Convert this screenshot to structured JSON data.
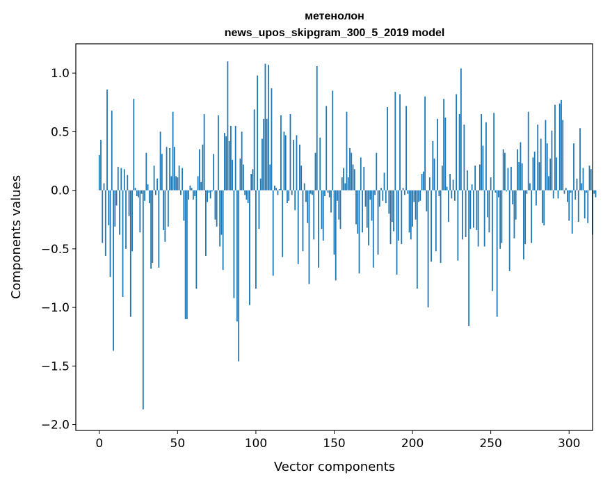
{
  "chart_data": {
    "type": "bar",
    "title_line1": "метенолон",
    "title_line2": "news_upos_skipgram_300_5_2019 model",
    "xlabel": "Vector components",
    "ylabel": "Components values",
    "xlim": [
      -15,
      315
    ],
    "ylim": [
      -2.05,
      1.25
    ],
    "x_ticks": [
      0,
      50,
      100,
      150,
      200,
      250,
      300
    ],
    "x_tick_labels": [
      "0",
      "50",
      "100",
      "150",
      "200",
      "250",
      "300"
    ],
    "y_ticks": [
      1.0,
      0.5,
      0.0,
      -0.5,
      -1.0,
      -1.5,
      -2.0
    ],
    "y_tick_labels": [
      "1.0",
      "0.5",
      "0.0",
      "−0.5",
      "−1.0",
      "−1.5",
      "−2.0"
    ],
    "bar_color": "#1f77b4",
    "values": [
      0.3,
      0.43,
      -0.45,
      0.06,
      -0.56,
      0.86,
      -0.3,
      -0.74,
      0.68,
      -1.37,
      -0.31,
      -0.13,
      0.2,
      -0.38,
      0.19,
      -0.91,
      0.18,
      -0.5,
      0.13,
      -0.22,
      -1.08,
      -0.52,
      0.78,
      0.02,
      -0.05,
      -0.06,
      -0.36,
      -0.03,
      -1.87,
      -0.09,
      0.32,
      0.05,
      -0.11,
      -0.67,
      -0.62,
      0.21,
      -0.04,
      0.1,
      -0.66,
      0.5,
      0.31,
      -0.34,
      -0.44,
      0.37,
      -0.31,
      0.36,
      0.12,
      0.67,
      0.37,
      0.12,
      0.11,
      0.21,
      -0.04,
      0.19,
      -0.26,
      -1.1,
      -1.1,
      -0.08,
      0.04,
      0.02,
      -0.08,
      -0.05,
      -0.84,
      0.12,
      0.35,
      0.07,
      0.39,
      0.65,
      -0.56,
      -0.1,
      -0.02,
      -0.07,
      -0.01,
      0.31,
      -0.25,
      -0.31,
      0.64,
      -0.48,
      -0.38,
      -0.68,
      0.49,
      0.46,
      1.1,
      0.42,
      0.55,
      0.26,
      -0.92,
      0.55,
      -1.12,
      -1.46,
      0.27,
      0.5,
      0.22,
      -0.04,
      -0.08,
      -0.11,
      -0.98,
      0.14,
      0.18,
      0.69,
      -0.84,
      0.98,
      -0.33,
      0.1,
      0.44,
      0.61,
      1.08,
      0.61,
      1.07,
      0.22,
      0.87,
      -0.73,
      0.04,
      0.02,
      -0.04,
      0.01,
      0.64,
      -0.57,
      0.5,
      0.47,
      -0.11,
      -0.09,
      0.65,
      -0.04,
      0.43,
      -0.17,
      0.47,
      -0.63,
      0.39,
      0.21,
      -0.52,
      0.06,
      -0.1,
      -0.28,
      -0.8,
      -0.03,
      -0.04,
      -0.42,
      0.32,
      1.06,
      -0.66,
      0.45,
      -0.33,
      -0.43,
      -0.05,
      0.72,
      -0.02,
      -0.06,
      -0.19,
      0.85,
      -0.55,
      -0.77,
      -0.09,
      -0.25,
      -0.33,
      0.11,
      0.19,
      0.06,
      0.67,
      0.11,
      0.36,
      0.32,
      0.22,
      0.18,
      -0.29,
      -0.37,
      -0.71,
      0.28,
      -0.36,
      0.2,
      -0.14,
      -0.32,
      -0.47,
      -0.08,
      -0.26,
      -0.66,
      -0.04,
      0.32,
      -0.55,
      -0.14,
      0.02,
      -0.09,
      0.15,
      -0.11,
      0.71,
      -0.2,
      -0.46,
      -0.27,
      -0.35,
      0.84,
      -0.72,
      -0.43,
      0.82,
      -0.46,
      0.02,
      -0.04,
      0.72,
      -0.03,
      -0.36,
      -0.42,
      -0.31,
      -0.1,
      -0.25,
      -0.84,
      -0.1,
      -0.09,
      0.14,
      0.16,
      0.8,
      -0.18,
      -1.0,
      0.11,
      -0.61,
      0.42,
      0.27,
      -0.52,
      0.61,
      -0.05,
      -0.62,
      0.21,
      0.78,
      0.62,
      0.03,
      -0.27,
      0.14,
      -0.07,
      0.09,
      -0.09,
      0.82,
      -0.6,
      0.65,
      1.04,
      -0.42,
      0.56,
      -0.4,
      0.17,
      -1.16,
      -0.33,
      0.05,
      -0.32,
      0.21,
      -0.34,
      -0.48,
      0.22,
      0.65,
      0.38,
      -0.48,
      0.58,
      -0.23,
      -0.36,
      0.11,
      -0.86,
      0.66,
      -0.02,
      -1.08,
      -0.06,
      -0.5,
      -0.45,
      0.35,
      0.32,
      -0.01,
      0.19,
      -0.69,
      0.2,
      -0.12,
      -0.41,
      -0.25,
      0.35,
      0.24,
      0.41,
      0.23,
      -0.59,
      -0.46,
      -0.03,
      0.67,
      0.06,
      -0.45,
      0.28,
      0.33,
      -0.13,
      0.56,
      0.24,
      0.44,
      -0.28,
      -0.3,
      0.6,
      0.4,
      0.12,
      0.27,
      0.51,
      -0.07,
      0.73,
      0.28,
      -0.07,
      0.74,
      0.77,
      0.6,
      -0.03,
      0.02,
      -0.1,
      -0.26,
      -0.02,
      -0.37,
      0.4,
      -0.08,
      0.1,
      -0.27,
      0.53,
      0.06,
      0.19,
      -0.24,
      -0.02,
      -0.28,
      0.21,
      0.18,
      -0.38,
      -0.03,
      -0.06
    ]
  }
}
